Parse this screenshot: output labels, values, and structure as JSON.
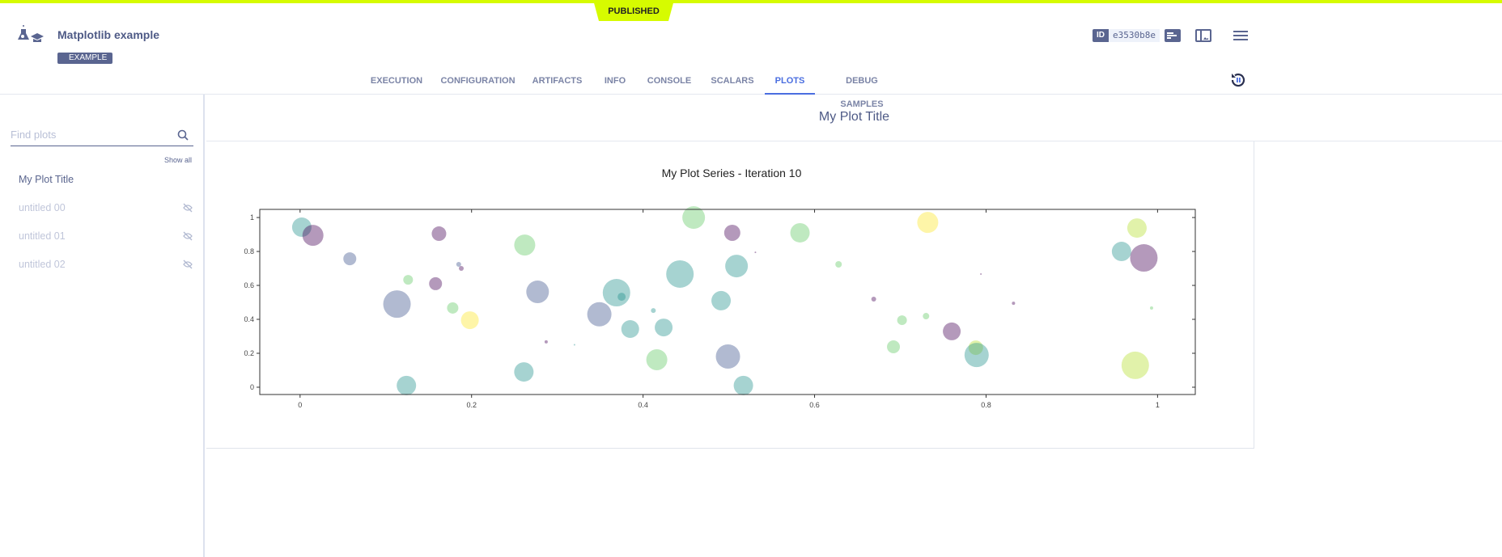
{
  "header": {
    "status": "PUBLISHED",
    "title": "Matplotlib example",
    "tag": "EXAMPLE",
    "id_label": "ID",
    "id_value": "e3530b8e",
    "icons": [
      "flask-icon",
      "details-icon",
      "layout-icon",
      "menu-icon",
      "refresh-pause-icon"
    ]
  },
  "tabs": [
    {
      "label": "EXECUTION"
    },
    {
      "label": "CONFIGURATION"
    },
    {
      "label": "ARTIFACTS"
    },
    {
      "label": "INFO"
    },
    {
      "label": "CONSOLE"
    },
    {
      "label": "SCALARS"
    },
    {
      "label": "PLOTS",
      "active": true
    },
    {
      "label": "DEBUG SAMPLES"
    }
  ],
  "sidebar": {
    "search_placeholder": "Find plots",
    "show_all": "Show all",
    "items": [
      {
        "label": "My Plot Title",
        "hidden": false
      },
      {
        "label": "untitled 00",
        "hidden": true
      },
      {
        "label": "untitled 01",
        "hidden": true
      },
      {
        "label": "untitled 02",
        "hidden": true
      }
    ]
  },
  "main": {
    "title": "My Plot Title"
  },
  "chart_data": {
    "type": "scatter",
    "title": "My Plot Series - Iteration 10",
    "xlabel": "",
    "ylabel": "",
    "xlim": [
      -0.047,
      1.044
    ],
    "ylim": [
      -0.043,
      1.048
    ],
    "xticks": [
      "0",
      "0.2",
      "0.4",
      "0.6",
      "0.8",
      "1"
    ],
    "yticks": [
      "0",
      "0.2",
      "0.4",
      "0.6",
      "0.8",
      "1"
    ],
    "grid": false,
    "alpha": 0.4,
    "colors": {
      "purple": "#440154",
      "slate": "#3b528b",
      "teal": "#21918c",
      "green": "#5ec962",
      "lime": "#b5de2b",
      "yellow": "#fde725"
    },
    "points": [
      {
        "x": 0.002,
        "y": 0.943,
        "s": 144,
        "c": "teal"
      },
      {
        "x": 0.015,
        "y": 0.895,
        "s": 169,
        "c": "purple"
      },
      {
        "x": 0.058,
        "y": 0.757,
        "s": 64,
        "c": "slate"
      },
      {
        "x": 0.162,
        "y": 0.905,
        "s": 81,
        "c": "purple"
      },
      {
        "x": 0.185,
        "y": 0.724,
        "s": 9,
        "c": "slate"
      },
      {
        "x": 0.188,
        "y": 0.7,
        "s": 9,
        "c": "purple"
      },
      {
        "x": 0.158,
        "y": 0.61,
        "s": 64,
        "c": "purple"
      },
      {
        "x": 0.126,
        "y": 0.633,
        "s": 36,
        "c": "green"
      },
      {
        "x": 0.113,
        "y": 0.49,
        "s": 289,
        "c": "slate"
      },
      {
        "x": 0.178,
        "y": 0.467,
        "s": 49,
        "c": "green"
      },
      {
        "x": 0.198,
        "y": 0.395,
        "s": 121,
        "c": "yellow"
      },
      {
        "x": 0.124,
        "y": 0.01,
        "s": 144,
        "c": "teal"
      },
      {
        "x": 0.262,
        "y": 0.838,
        "s": 169,
        "c": "green"
      },
      {
        "x": 0.277,
        "y": 0.562,
        "s": 196,
        "c": "slate"
      },
      {
        "x": 0.287,
        "y": 0.267,
        "s": 4,
        "c": "purple"
      },
      {
        "x": 0.261,
        "y": 0.09,
        "s": 144,
        "c": "teal"
      },
      {
        "x": 0.32,
        "y": 0.25,
        "s": 1,
        "c": "teal"
      },
      {
        "x": 0.349,
        "y": 0.43,
        "s": 225,
        "c": "slate"
      },
      {
        "x": 0.369,
        "y": 0.557,
        "s": 289,
        "c": "teal"
      },
      {
        "x": 0.375,
        "y": 0.533,
        "s": 25,
        "c": "teal"
      },
      {
        "x": 0.385,
        "y": 0.343,
        "s": 121,
        "c": "teal"
      },
      {
        "x": 0.412,
        "y": 0.452,
        "s": 9,
        "c": "teal"
      },
      {
        "x": 0.424,
        "y": 0.352,
        "s": 121,
        "c": "teal"
      },
      {
        "x": 0.416,
        "y": 0.162,
        "s": 169,
        "c": "green"
      },
      {
        "x": 0.443,
        "y": 0.667,
        "s": 289,
        "c": "teal"
      },
      {
        "x": 0.459,
        "y": 1.0,
        "s": 196,
        "c": "green"
      },
      {
        "x": 0.504,
        "y": 0.91,
        "s": 100,
        "c": "purple"
      },
      {
        "x": 0.509,
        "y": 0.714,
        "s": 196,
        "c": "teal"
      },
      {
        "x": 0.491,
        "y": 0.51,
        "s": 144,
        "c": "teal"
      },
      {
        "x": 0.499,
        "y": 0.181,
        "s": 225,
        "c": "slate"
      },
      {
        "x": 0.517,
        "y": 0.01,
        "s": 144,
        "c": "teal"
      },
      {
        "x": 0.531,
        "y": 0.795,
        "s": 1,
        "c": "purple"
      },
      {
        "x": 0.583,
        "y": 0.91,
        "s": 144,
        "c": "green"
      },
      {
        "x": 0.628,
        "y": 0.724,
        "s": 16,
        "c": "green"
      },
      {
        "x": 0.669,
        "y": 0.519,
        "s": 9,
        "c": "purple"
      },
      {
        "x": 0.702,
        "y": 0.395,
        "s": 36,
        "c": "green"
      },
      {
        "x": 0.692,
        "y": 0.238,
        "s": 64,
        "c": "green"
      },
      {
        "x": 0.73,
        "y": 0.419,
        "s": 16,
        "c": "green"
      },
      {
        "x": 0.732,
        "y": 0.971,
        "s": 169,
        "c": "yellow"
      },
      {
        "x": 0.76,
        "y": 0.329,
        "s": 121,
        "c": "purple"
      },
      {
        "x": 0.788,
        "y": 0.233,
        "s": 81,
        "c": "lime"
      },
      {
        "x": 0.789,
        "y": 0.19,
        "s": 225,
        "c": "teal"
      },
      {
        "x": 0.794,
        "y": 0.667,
        "s": 1,
        "c": "purple"
      },
      {
        "x": 0.832,
        "y": 0.495,
        "s": 4,
        "c": "purple"
      },
      {
        "x": 0.958,
        "y": 0.8,
        "s": 144,
        "c": "teal"
      },
      {
        "x": 0.984,
        "y": 0.762,
        "s": 289,
        "c": "purple"
      },
      {
        "x": 0.976,
        "y": 0.938,
        "s": 144,
        "c": "lime"
      },
      {
        "x": 0.993,
        "y": 0.467,
        "s": 4,
        "c": "green"
      },
      {
        "x": 0.974,
        "y": 0.129,
        "s": 289,
        "c": "lime"
      }
    ]
  }
}
